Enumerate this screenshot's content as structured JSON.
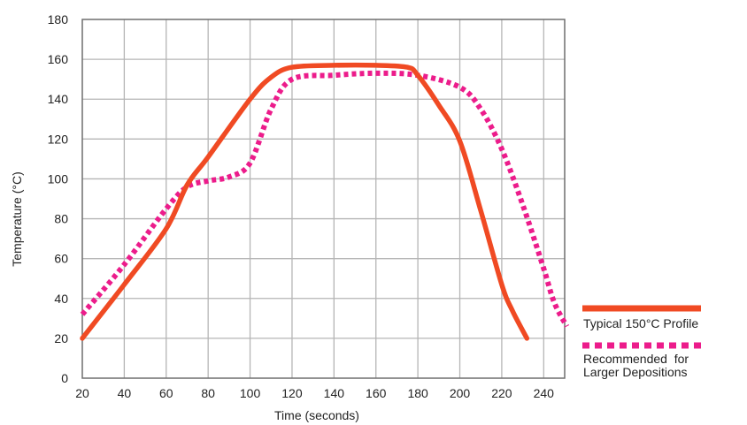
{
  "chart_data": {
    "type": "line",
    "xlabel": "Time (seconds)",
    "ylabel": "Temperature (°C)",
    "xlim": [
      20,
      250
    ],
    "ylim": [
      0,
      180
    ],
    "x_ticks": [
      20,
      40,
      60,
      80,
      100,
      120,
      140,
      160,
      180,
      200,
      220,
      240
    ],
    "y_ticks": [
      0,
      20,
      40,
      60,
      80,
      100,
      120,
      140,
      160,
      180
    ],
    "grid": true,
    "legend_position": "bottom-right outside",
    "series": [
      {
        "name": "Typical 150°C Profile",
        "color": "#f04a23",
        "style": "solid",
        "points": [
          [
            20,
            20
          ],
          [
            40,
            47
          ],
          [
            60,
            75
          ],
          [
            70,
            97
          ],
          [
            80,
            111
          ],
          [
            100,
            140
          ],
          [
            110,
            151
          ],
          [
            120,
            156
          ],
          [
            140,
            157
          ],
          [
            160,
            157
          ],
          [
            175,
            156
          ],
          [
            180,
            152
          ],
          [
            190,
            137
          ],
          [
            200,
            119
          ],
          [
            210,
            84
          ],
          [
            220,
            47
          ],
          [
            225,
            34
          ],
          [
            232,
            20
          ]
        ]
      },
      {
        "name": "Recommended for Larger Depositions",
        "color": "#ec1c8b",
        "style": "dotted",
        "points": [
          [
            20,
            32
          ],
          [
            40,
            57
          ],
          [
            60,
            85
          ],
          [
            70,
            96
          ],
          [
            80,
            99
          ],
          [
            90,
            101
          ],
          [
            100,
            108
          ],
          [
            110,
            135
          ],
          [
            120,
            150
          ],
          [
            140,
            152
          ],
          [
            160,
            153
          ],
          [
            180,
            152
          ],
          [
            200,
            146
          ],
          [
            210,
            135
          ],
          [
            220,
            115
          ],
          [
            230,
            87
          ],
          [
            240,
            55
          ],
          [
            245,
            38
          ],
          [
            251,
            26
          ]
        ]
      }
    ],
    "legend": {
      "entries": [
        {
          "lines": [
            "Typical 150°C Profile"
          ]
        },
        {
          "lines": [
            "Recommended  for",
            "Larger Depositions"
          ]
        }
      ]
    }
  }
}
